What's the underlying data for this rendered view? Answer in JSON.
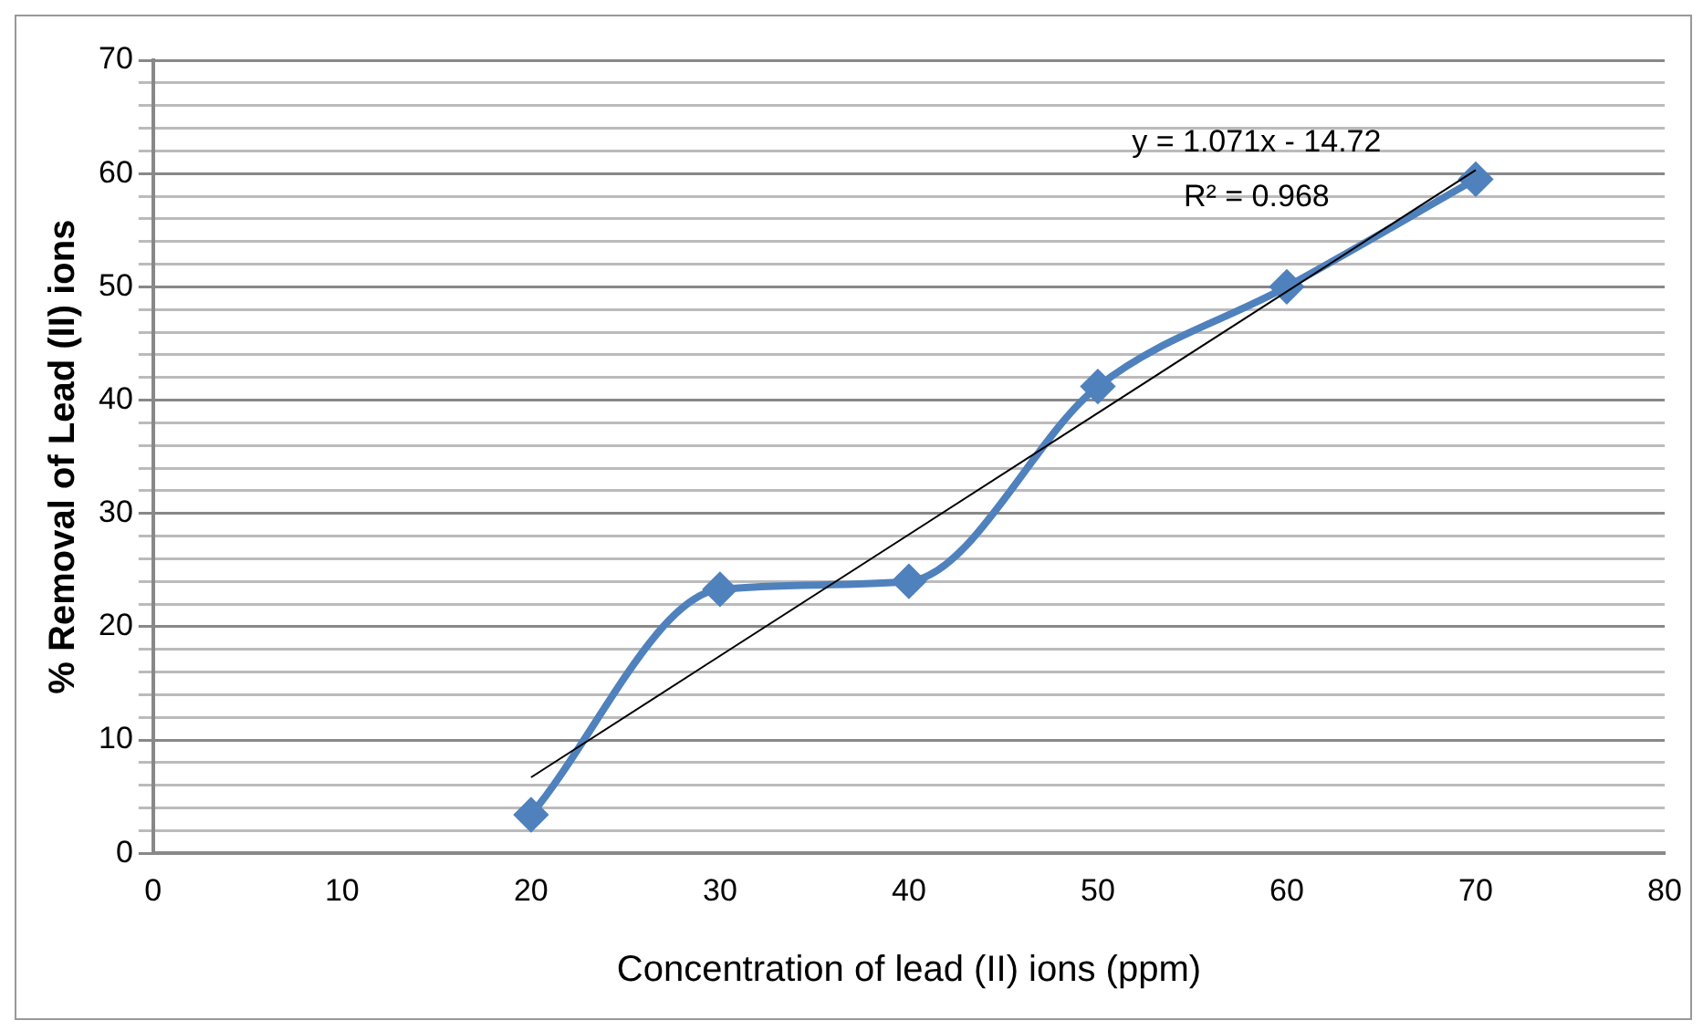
{
  "chart_data": {
    "type": "line",
    "xlabel": "Concentration of lead (II) ions (ppm)",
    "ylabel": "% Removal of Lead (II) ions",
    "x": [
      20,
      30,
      40,
      50,
      60,
      70
    ],
    "series": [
      {
        "color": "#4f81bd",
        "marker": "diamond",
        "values": [
          3.4,
          23.3,
          24.0,
          41.2,
          50.0,
          59.5
        ]
      },
      {
        "color": "#000000",
        "marker": "none",
        "x": [
          20,
          70
        ],
        "values": [
          6.7,
          60.3
        ]
      }
    ],
    "xlim": [
      0,
      80
    ],
    "xticks": [
      0,
      10,
      20,
      30,
      40,
      50,
      60,
      70,
      80
    ],
    "ylim": [
      0,
      70
    ],
    "yticks": [
      0,
      {
        "value": 2,
        "label": null
      },
      {
        "value": 4,
        "label": null
      },
      {
        "value": 6,
        "label": null
      },
      {
        "value": 8,
        "label": null
      },
      10,
      {
        "value": 12,
        "label": null
      },
      {
        "value": 14,
        "label": null
      },
      {
        "value": 16,
        "label": null
      },
      {
        "value": 18,
        "label": null
      },
      20,
      {
        "value": 22,
        "label": null
      },
      {
        "value": 24,
        "label": null
      },
      {
        "value": 26,
        "label": null
      },
      {
        "value": 28,
        "label": null
      },
      30,
      {
        "value": 32,
        "label": null
      },
      {
        "value": 34,
        "label": null
      },
      {
        "value": 36,
        "label": null
      },
      {
        "value": 38,
        "label": null
      },
      40,
      {
        "value": 42,
        "label": null
      },
      {
        "value": 44,
        "label": null
      },
      {
        "value": 46,
        "label": null
      },
      {
        "value": 48,
        "label": null
      },
      50,
      {
        "value": 52,
        "label": null
      },
      {
        "value": 54,
        "label": null
      },
      {
        "value": 56,
        "label": null
      },
      {
        "value": 58,
        "label": null
      },
      60,
      {
        "value": 62,
        "label": null
      },
      {
        "value": 64,
        "label": null
      },
      {
        "value": 66,
        "label": null
      },
      {
        "value": 68,
        "label": null
      },
      70
    ],
    "grid": "y",
    "legend": false,
    "annotations": [
      "y = 1.071x - 14.72",
      "R² = 0.968"
    ]
  }
}
